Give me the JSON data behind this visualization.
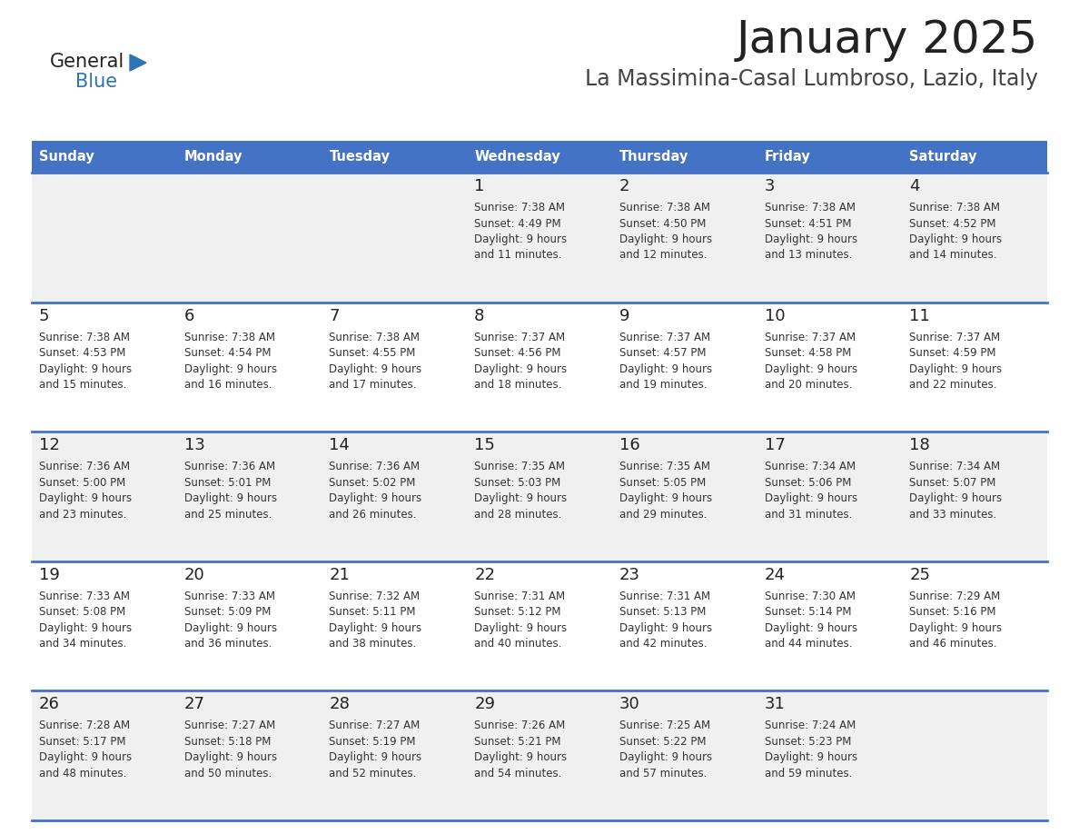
{
  "title": "January 2025",
  "subtitle": "La Massimina-Casal Lumbroso, Lazio, Italy",
  "days_of_week": [
    "Sunday",
    "Monday",
    "Tuesday",
    "Wednesday",
    "Thursday",
    "Friday",
    "Saturday"
  ],
  "header_bg": "#4472C4",
  "header_text": "#FFFFFF",
  "row_bg_odd": "#F0F0F0",
  "row_bg_even": "#FFFFFF",
  "cell_border": "#4472C4",
  "day_number_color": "#222222",
  "text_color": "#333333",
  "title_color": "#222222",
  "subtitle_color": "#444444",
  "logo_general_color": "#222222",
  "logo_blue_color": "#2E75B6",
  "logo_triangle_color": "#2E75B6",
  "calendar_data": [
    {
      "day": 1,
      "col": 3,
      "row": 0,
      "sunrise": "7:38 AM",
      "sunset": "4:49 PM",
      "daylight": "9 hours and 11 minutes."
    },
    {
      "day": 2,
      "col": 4,
      "row": 0,
      "sunrise": "7:38 AM",
      "sunset": "4:50 PM",
      "daylight": "9 hours and 12 minutes."
    },
    {
      "day": 3,
      "col": 5,
      "row": 0,
      "sunrise": "7:38 AM",
      "sunset": "4:51 PM",
      "daylight": "9 hours and 13 minutes."
    },
    {
      "day": 4,
      "col": 6,
      "row": 0,
      "sunrise": "7:38 AM",
      "sunset": "4:52 PM",
      "daylight": "9 hours and 14 minutes."
    },
    {
      "day": 5,
      "col": 0,
      "row": 1,
      "sunrise": "7:38 AM",
      "sunset": "4:53 PM",
      "daylight": "9 hours and 15 minutes."
    },
    {
      "day": 6,
      "col": 1,
      "row": 1,
      "sunrise": "7:38 AM",
      "sunset": "4:54 PM",
      "daylight": "9 hours and 16 minutes."
    },
    {
      "day": 7,
      "col": 2,
      "row": 1,
      "sunrise": "7:38 AM",
      "sunset": "4:55 PM",
      "daylight": "9 hours and 17 minutes."
    },
    {
      "day": 8,
      "col": 3,
      "row": 1,
      "sunrise": "7:37 AM",
      "sunset": "4:56 PM",
      "daylight": "9 hours and 18 minutes."
    },
    {
      "day": 9,
      "col": 4,
      "row": 1,
      "sunrise": "7:37 AM",
      "sunset": "4:57 PM",
      "daylight": "9 hours and 19 minutes."
    },
    {
      "day": 10,
      "col": 5,
      "row": 1,
      "sunrise": "7:37 AM",
      "sunset": "4:58 PM",
      "daylight": "9 hours and 20 minutes."
    },
    {
      "day": 11,
      "col": 6,
      "row": 1,
      "sunrise": "7:37 AM",
      "sunset": "4:59 PM",
      "daylight": "9 hours and 22 minutes."
    },
    {
      "day": 12,
      "col": 0,
      "row": 2,
      "sunrise": "7:36 AM",
      "sunset": "5:00 PM",
      "daylight": "9 hours and 23 minutes."
    },
    {
      "day": 13,
      "col": 1,
      "row": 2,
      "sunrise": "7:36 AM",
      "sunset": "5:01 PM",
      "daylight": "9 hours and 25 minutes."
    },
    {
      "day": 14,
      "col": 2,
      "row": 2,
      "sunrise": "7:36 AM",
      "sunset": "5:02 PM",
      "daylight": "9 hours and 26 minutes."
    },
    {
      "day": 15,
      "col": 3,
      "row": 2,
      "sunrise": "7:35 AM",
      "sunset": "5:03 PM",
      "daylight": "9 hours and 28 minutes."
    },
    {
      "day": 16,
      "col": 4,
      "row": 2,
      "sunrise": "7:35 AM",
      "sunset": "5:05 PM",
      "daylight": "9 hours and 29 minutes."
    },
    {
      "day": 17,
      "col": 5,
      "row": 2,
      "sunrise": "7:34 AM",
      "sunset": "5:06 PM",
      "daylight": "9 hours and 31 minutes."
    },
    {
      "day": 18,
      "col": 6,
      "row": 2,
      "sunrise": "7:34 AM",
      "sunset": "5:07 PM",
      "daylight": "9 hours and 33 minutes."
    },
    {
      "day": 19,
      "col": 0,
      "row": 3,
      "sunrise": "7:33 AM",
      "sunset": "5:08 PM",
      "daylight": "9 hours and 34 minutes."
    },
    {
      "day": 20,
      "col": 1,
      "row": 3,
      "sunrise": "7:33 AM",
      "sunset": "5:09 PM",
      "daylight": "9 hours and 36 minutes."
    },
    {
      "day": 21,
      "col": 2,
      "row": 3,
      "sunrise": "7:32 AM",
      "sunset": "5:11 PM",
      "daylight": "9 hours and 38 minutes."
    },
    {
      "day": 22,
      "col": 3,
      "row": 3,
      "sunrise": "7:31 AM",
      "sunset": "5:12 PM",
      "daylight": "9 hours and 40 minutes."
    },
    {
      "day": 23,
      "col": 4,
      "row": 3,
      "sunrise": "7:31 AM",
      "sunset": "5:13 PM",
      "daylight": "9 hours and 42 minutes."
    },
    {
      "day": 24,
      "col": 5,
      "row": 3,
      "sunrise": "7:30 AM",
      "sunset": "5:14 PM",
      "daylight": "9 hours and 44 minutes."
    },
    {
      "day": 25,
      "col": 6,
      "row": 3,
      "sunrise": "7:29 AM",
      "sunset": "5:16 PM",
      "daylight": "9 hours and 46 minutes."
    },
    {
      "day": 26,
      "col": 0,
      "row": 4,
      "sunrise": "7:28 AM",
      "sunset": "5:17 PM",
      "daylight": "9 hours and 48 minutes."
    },
    {
      "day": 27,
      "col": 1,
      "row": 4,
      "sunrise": "7:27 AM",
      "sunset": "5:18 PM",
      "daylight": "9 hours and 50 minutes."
    },
    {
      "day": 28,
      "col": 2,
      "row": 4,
      "sunrise": "7:27 AM",
      "sunset": "5:19 PM",
      "daylight": "9 hours and 52 minutes."
    },
    {
      "day": 29,
      "col": 3,
      "row": 4,
      "sunrise": "7:26 AM",
      "sunset": "5:21 PM",
      "daylight": "9 hours and 54 minutes."
    },
    {
      "day": 30,
      "col": 4,
      "row": 4,
      "sunrise": "7:25 AM",
      "sunset": "5:22 PM",
      "daylight": "9 hours and 57 minutes."
    },
    {
      "day": 31,
      "col": 5,
      "row": 4,
      "sunrise": "7:24 AM",
      "sunset": "5:23 PM",
      "daylight": "9 hours and 59 minutes."
    }
  ]
}
